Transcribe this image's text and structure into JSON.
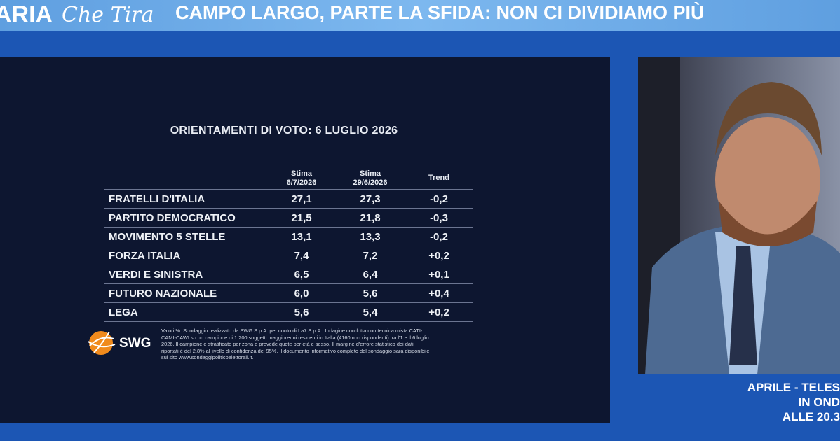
{
  "header": {
    "logo": "ARIA",
    "logo_script": "Che Tira",
    "headline": "CAMPO LARGO, PARTE LA SFIDA: NON CI DIVIDIAMO PIÙ"
  },
  "table": {
    "title": "ORIENTAMENTI DI VOTO: 6 LUGLIO 2026",
    "columns": [
      [
        "Stima",
        "6/7/2026"
      ],
      [
        "Stima",
        "29/6/2026"
      ],
      [
        "Trend"
      ]
    ],
    "rows": [
      [
        "FRATELLI D'ITALIA",
        "27,1",
        "27,3",
        "-0,2"
      ],
      [
        "PARTITO DEMOCRATICO",
        "21,5",
        "21,8",
        "-0,3"
      ],
      [
        "MOVIMENTO 5 STELLE",
        "13,1",
        "13,3",
        "-0,2"
      ],
      [
        "FORZA ITALIA",
        "7,4",
        "7,2",
        "+0,2"
      ],
      [
        "VERDI E SINISTRA",
        "6,5",
        "6,4",
        "+0,1"
      ],
      [
        "FUTURO NAZIONALE",
        "6,0",
        "5,6",
        "+0,4"
      ],
      [
        "LEGA",
        "5,6",
        "5,4",
        "+0,2"
      ]
    ],
    "footnote": [
      "Valori %. Sondaggio realizzato da SWG S.p.A. per conto di La7 S.p.A.. Indagine condotta con tecnica mista CATI-",
      "CAMI-CAWI su un campione di 1.200 soggetti maggiorenni residenti in Italia (4160 non rispondenti) tra l'1 e il 6 luglio",
      "2026. Il campione è stratificato per zona e prevede quote per età e sesso. Il margine d'errore statistico dei dati",
      "riportati è del 2,8% al livello di confidenza del 95%. Il documento informativo completo del sondaggio sarà disponibile",
      "sul sito www.sondaggipoliticoelettorali.it."
    ],
    "logo": "SWG"
  },
  "caption": [
    "APRILE - TELES",
    "IN OND",
    "ALLE 20.3"
  ]
}
